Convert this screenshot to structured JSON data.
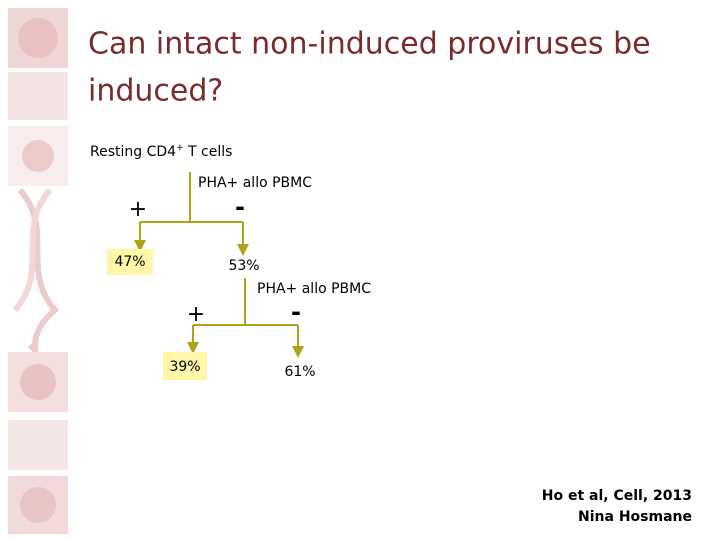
{
  "header": {
    "title_lines": [
      "Can intact non-induced proviruses be",
      "induced?"
    ]
  },
  "start": {
    "label": "Resting CD4",
    "sup": "+",
    "suffix": " T cells"
  },
  "steps": [
    {
      "stimulus": "PHA+ allo PBMC",
      "plus": "+",
      "minus": "-",
      "yes": "47%",
      "no": "53%"
    },
    {
      "stimulus": "PHA+ allo PBMC",
      "plus": "+",
      "minus": "-",
      "yes": "39%",
      "no": "61%"
    }
  ],
  "citation": [
    "Ho et al, Cell, 2013",
    "Nina Hosmane"
  ]
}
